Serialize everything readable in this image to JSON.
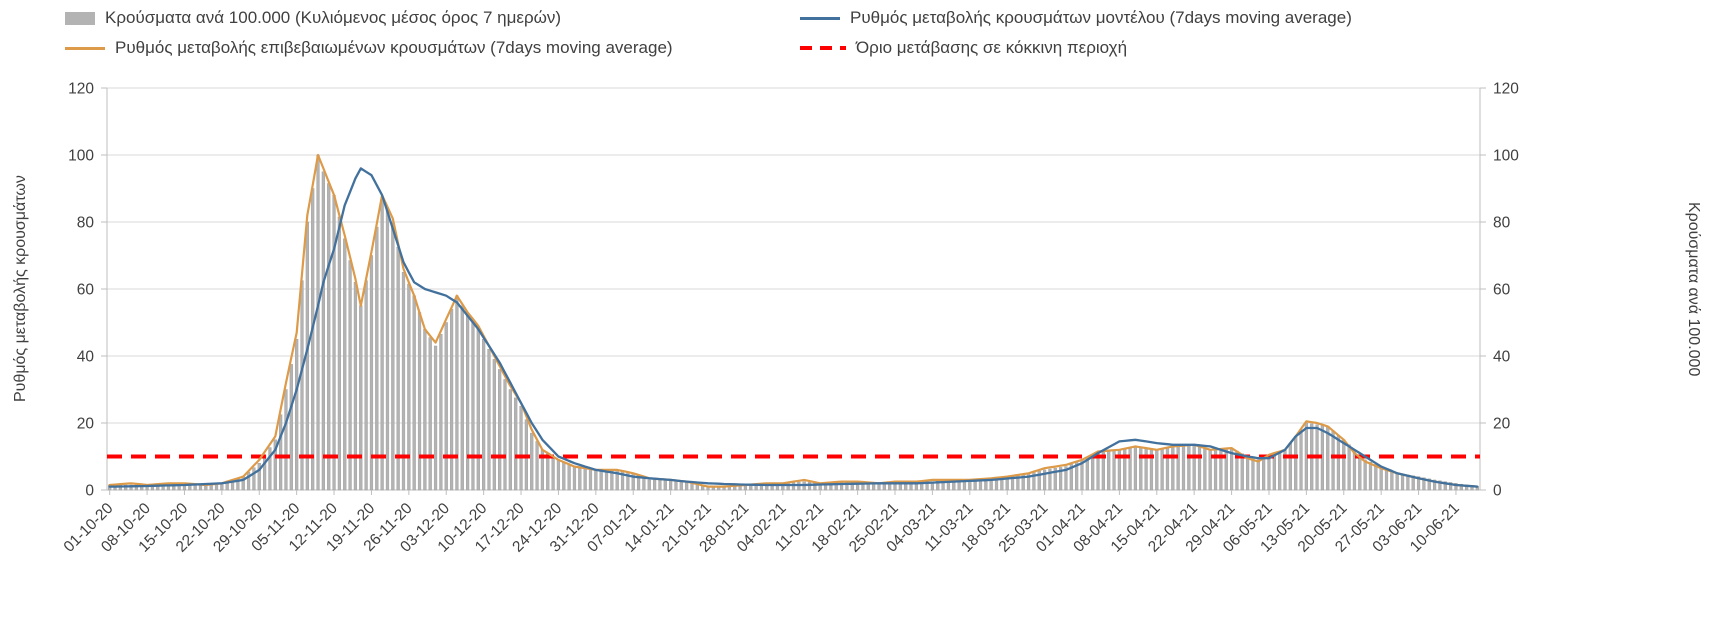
{
  "chart_data": {
    "type": "bar",
    "subtype": "combo-bar-and-lines",
    "title": "",
    "ylabel_left": "Ρυθμός μεταβολής κρουσμάτων",
    "ylabel_right": "Κρούσματα ανά 100.000",
    "ylim": [
      0,
      120
    ],
    "y_ticks": [
      0,
      20,
      40,
      60,
      80,
      100,
      120
    ],
    "grid": "horizontal",
    "legend_position": "top",
    "x_unit": "days since 01-10-20, daily points; anchors are [day, value] with linear interpolation between them",
    "days_total": 257,
    "x_tick_interval_days": 7,
    "x_ticks": [
      "01-10-20",
      "08-10-20",
      "15-10-20",
      "22-10-20",
      "29-10-20",
      "05-11-20",
      "12-11-20",
      "19-11-20",
      "26-11-20",
      "03-12-20",
      "10-12-20",
      "17-12-20",
      "24-12-20",
      "31-12-20",
      "07-01-21",
      "14-01-21",
      "21-01-21",
      "28-01-21",
      "04-02-21",
      "11-02-21",
      "18-02-21",
      "25-02-21",
      "04-03-21",
      "11-03-21",
      "18-03-21",
      "25-03-21",
      "01-04-21",
      "08-04-21",
      "15-04-21",
      "22-04-21",
      "29-04-21",
      "06-05-21",
      "13-05-21",
      "20-05-21",
      "27-05-21",
      "03-06-21",
      "10-06-21"
    ],
    "series": {
      "bars": {
        "label": "Κρούσματα ανά 100.000 (Κυλιόμενος μέσος όρος 7 ημερών)",
        "type": "bar",
        "color": "#b3b3b3",
        "edge_color": "#9a9a9a",
        "anchors": [
          [
            0,
            1.5
          ],
          [
            4,
            1.5
          ],
          [
            7,
            1.5
          ],
          [
            11,
            2
          ],
          [
            14,
            2
          ],
          [
            18,
            1.5
          ],
          [
            21,
            2
          ],
          [
            25,
            4
          ],
          [
            28,
            8
          ],
          [
            31,
            15
          ],
          [
            33,
            30
          ],
          [
            35,
            45
          ],
          [
            37,
            80
          ],
          [
            39,
            100
          ],
          [
            40,
            95
          ],
          [
            42,
            88
          ],
          [
            44,
            75
          ],
          [
            46,
            62
          ],
          [
            47,
            55
          ],
          [
            49,
            70
          ],
          [
            51,
            87
          ],
          [
            53,
            80
          ],
          [
            55,
            65
          ],
          [
            57,
            58
          ],
          [
            59,
            48
          ],
          [
            61,
            43
          ],
          [
            63,
            50
          ],
          [
            65,
            58
          ],
          [
            67,
            52
          ],
          [
            69,
            48
          ],
          [
            71,
            42
          ],
          [
            73,
            36
          ],
          [
            75,
            30
          ],
          [
            77,
            25
          ],
          [
            79,
            17
          ],
          [
            81,
            12
          ],
          [
            84,
            9
          ],
          [
            87,
            7
          ],
          [
            91,
            6
          ],
          [
            95,
            6
          ],
          [
            98,
            5
          ],
          [
            101,
            3
          ],
          [
            105,
            3
          ],
          [
            108,
            2.5
          ],
          [
            112,
            1
          ],
          [
            115,
            1
          ],
          [
            119,
            1.5
          ],
          [
            123,
            2
          ],
          [
            126,
            2
          ],
          [
            130,
            2.5
          ],
          [
            133,
            2
          ],
          [
            137,
            2.5
          ],
          [
            140,
            2.5
          ],
          [
            144,
            2
          ],
          [
            147,
            2.5
          ],
          [
            151,
            2.5
          ],
          [
            154,
            2.5
          ],
          [
            158,
            3
          ],
          [
            161,
            3
          ],
          [
            165,
            3.5
          ],
          [
            168,
            4
          ],
          [
            172,
            5
          ],
          [
            175,
            6
          ],
          [
            179,
            7
          ],
          [
            182,
            9
          ],
          [
            185,
            11
          ],
          [
            189,
            12
          ],
          [
            192,
            13
          ],
          [
            196,
            12
          ],
          [
            199,
            13
          ],
          [
            203,
            13.5
          ],
          [
            206,
            12
          ],
          [
            210,
            12.5
          ],
          [
            213,
            10
          ],
          [
            215,
            9
          ],
          [
            217,
            10
          ],
          [
            220,
            12
          ],
          [
            222,
            16
          ],
          [
            224,
            20
          ],
          [
            226,
            19.5
          ],
          [
            228,
            19
          ],
          [
            231,
            15
          ],
          [
            233,
            12
          ],
          [
            235,
            9
          ],
          [
            238,
            7
          ],
          [
            241,
            5
          ],
          [
            245,
            4
          ],
          [
            248,
            3
          ],
          [
            252,
            2
          ],
          [
            256,
            1
          ]
        ]
      },
      "confirmed": {
        "label": "Ρυθμός μεταβολής επιβεβαιωμένων κρουσμάτων (7days moving average)",
        "type": "line",
        "color": "#dd9a48",
        "anchors": [
          [
            0,
            1.5
          ],
          [
            4,
            2
          ],
          [
            7,
            1.5
          ],
          [
            11,
            2
          ],
          [
            14,
            2
          ],
          [
            18,
            1.5
          ],
          [
            21,
            2
          ],
          [
            25,
            4
          ],
          [
            28,
            9
          ],
          [
            31,
            16
          ],
          [
            33,
            32
          ],
          [
            35,
            47
          ],
          [
            37,
            82
          ],
          [
            39,
            100
          ],
          [
            40,
            96
          ],
          [
            42,
            88
          ],
          [
            44,
            76
          ],
          [
            46,
            63
          ],
          [
            47,
            55
          ],
          [
            49,
            71
          ],
          [
            51,
            88
          ],
          [
            53,
            81
          ],
          [
            55,
            66
          ],
          [
            57,
            58
          ],
          [
            59,
            48
          ],
          [
            61,
            44
          ],
          [
            63,
            51
          ],
          [
            65,
            58
          ],
          [
            67,
            53
          ],
          [
            69,
            49
          ],
          [
            71,
            43
          ],
          [
            73,
            37
          ],
          [
            75,
            31
          ],
          [
            77,
            26
          ],
          [
            79,
            18
          ],
          [
            81,
            12
          ],
          [
            84,
            9
          ],
          [
            87,
            7
          ],
          [
            91,
            6
          ],
          [
            95,
            6
          ],
          [
            98,
            5
          ],
          [
            101,
            3.5
          ],
          [
            105,
            3
          ],
          [
            108,
            2.5
          ],
          [
            112,
            1
          ],
          [
            115,
            1
          ],
          [
            119,
            1.5
          ],
          [
            123,
            2
          ],
          [
            126,
            2
          ],
          [
            130,
            3
          ],
          [
            133,
            2
          ],
          [
            137,
            2.5
          ],
          [
            140,
            2.5
          ],
          [
            144,
            2
          ],
          [
            147,
            2.5
          ],
          [
            151,
            2.5
          ],
          [
            154,
            3
          ],
          [
            158,
            3
          ],
          [
            161,
            3
          ],
          [
            165,
            3.5
          ],
          [
            168,
            4
          ],
          [
            172,
            5
          ],
          [
            175,
            6.5
          ],
          [
            179,
            7.5
          ],
          [
            182,
            9
          ],
          [
            185,
            11.5
          ],
          [
            189,
            12
          ],
          [
            192,
            13
          ],
          [
            196,
            12
          ],
          [
            199,
            13
          ],
          [
            203,
            13.5
          ],
          [
            206,
            12
          ],
          [
            210,
            12.5
          ],
          [
            213,
            9.5
          ],
          [
            215,
            8.5
          ],
          [
            217,
            10.5
          ],
          [
            220,
            12
          ],
          [
            222,
            16
          ],
          [
            224,
            20.5
          ],
          [
            226,
            20
          ],
          [
            228,
            19
          ],
          [
            231,
            15
          ],
          [
            233,
            11
          ],
          [
            235,
            8.5
          ],
          [
            238,
            6.5
          ],
          [
            241,
            5
          ],
          [
            245,
            3.5
          ],
          [
            248,
            2.5
          ],
          [
            252,
            1.5
          ],
          [
            256,
            1
          ]
        ]
      },
      "model": {
        "label": "Ρυθμός μεταβολής κρουσμάτων μοντέλου (7days moving average)",
        "type": "line",
        "color": "#41719c",
        "anchors": [
          [
            0,
            1
          ],
          [
            7,
            1.2
          ],
          [
            14,
            1.5
          ],
          [
            21,
            2
          ],
          [
            25,
            3
          ],
          [
            28,
            6
          ],
          [
            31,
            12
          ],
          [
            33,
            20
          ],
          [
            35,
            30
          ],
          [
            37,
            42
          ],
          [
            39,
            55
          ],
          [
            40,
            62
          ],
          [
            42,
            72
          ],
          [
            44,
            85
          ],
          [
            46,
            93
          ],
          [
            47,
            96
          ],
          [
            49,
            94
          ],
          [
            51,
            88
          ],
          [
            53,
            78
          ],
          [
            55,
            68
          ],
          [
            57,
            62
          ],
          [
            59,
            60
          ],
          [
            61,
            59
          ],
          [
            63,
            58
          ],
          [
            65,
            56
          ],
          [
            67,
            52
          ],
          [
            69,
            48
          ],
          [
            71,
            43
          ],
          [
            73,
            38
          ],
          [
            75,
            32
          ],
          [
            77,
            26
          ],
          [
            79,
            20
          ],
          [
            81,
            15
          ],
          [
            84,
            10
          ],
          [
            87,
            8
          ],
          [
            91,
            6
          ],
          [
            95,
            5
          ],
          [
            98,
            4
          ],
          [
            101,
            3.5
          ],
          [
            105,
            3
          ],
          [
            108,
            2.5
          ],
          [
            112,
            2
          ],
          [
            115,
            1.8
          ],
          [
            119,
            1.6
          ],
          [
            123,
            1.5
          ],
          [
            130,
            1.5
          ],
          [
            137,
            1.8
          ],
          [
            144,
            2
          ],
          [
            151,
            2
          ],
          [
            158,
            2.5
          ],
          [
            165,
            3
          ],
          [
            172,
            4
          ],
          [
            179,
            6
          ],
          [
            182,
            8
          ],
          [
            185,
            11
          ],
          [
            189,
            14.5
          ],
          [
            192,
            15
          ],
          [
            196,
            14
          ],
          [
            199,
            13.5
          ],
          [
            203,
            13.5
          ],
          [
            206,
            13
          ],
          [
            210,
            11
          ],
          [
            213,
            10
          ],
          [
            215,
            9.5
          ],
          [
            217,
            9.5
          ],
          [
            220,
            12
          ],
          [
            222,
            16
          ],
          [
            224,
            18.5
          ],
          [
            226,
            18.5
          ],
          [
            228,
            17
          ],
          [
            231,
            14
          ],
          [
            233,
            12
          ],
          [
            235,
            10
          ],
          [
            238,
            7
          ],
          [
            241,
            5
          ],
          [
            245,
            3.5
          ],
          [
            248,
            2.5
          ],
          [
            252,
            1.5
          ],
          [
            256,
            1
          ]
        ]
      },
      "threshold": {
        "label": "Όριο μετάβασης σε κόκκινη περιοχή",
        "type": "dashed-line",
        "color": "#fe0000",
        "value": 10
      }
    }
  }
}
